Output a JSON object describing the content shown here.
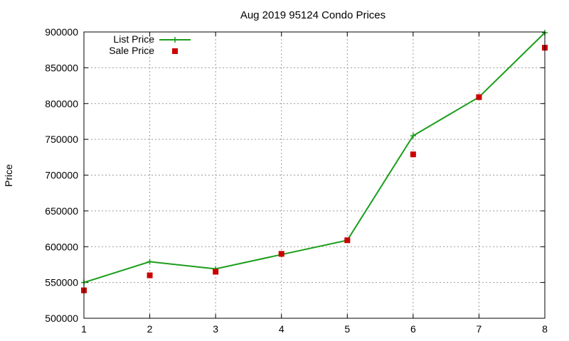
{
  "chart_data": {
    "type": "line",
    "title": "Aug 2019 95124 Condo Prices",
    "xlabel": "",
    "ylabel": "Price",
    "x": [
      1,
      2,
      3,
      4,
      5,
      6,
      7,
      8
    ],
    "xlim": [
      1,
      8
    ],
    "ylim": [
      500000,
      900000
    ],
    "xticks": [
      1,
      2,
      3,
      4,
      5,
      6,
      7,
      8
    ],
    "yticks": [
      500000,
      550000,
      600000,
      650000,
      700000,
      750000,
      800000,
      850000,
      900000
    ],
    "grid": true,
    "legend_position": "top-left",
    "series": [
      {
        "name": "List Price",
        "style": "line+cross",
        "color": "#1a9e1a",
        "values": [
          550000,
          579000,
          569000,
          589000,
          609000,
          755000,
          809000,
          899000
        ]
      },
      {
        "name": "Sale Price",
        "style": "square",
        "color": "#cc0000",
        "values": [
          539000,
          560000,
          565000,
          590000,
          609000,
          729000,
          809000,
          878000
        ]
      }
    ]
  }
}
